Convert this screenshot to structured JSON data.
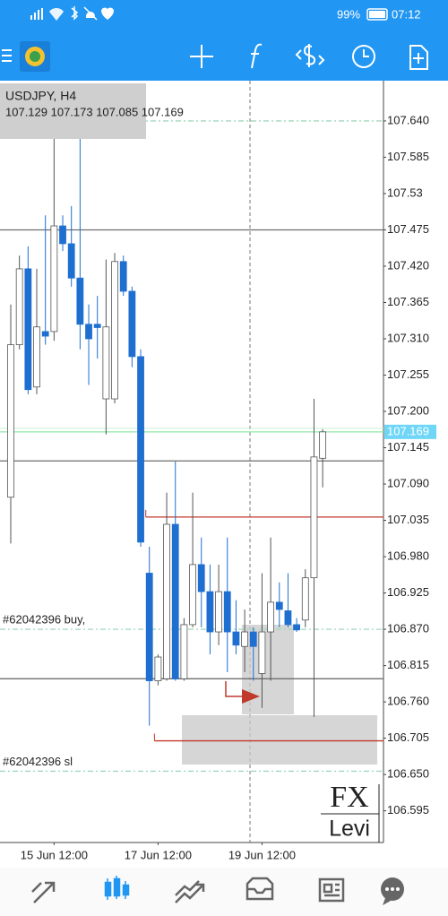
{
  "status_bar": {
    "battery": "99%",
    "time": "07:12"
  },
  "chart_data": {
    "type": "candlestick",
    "symbol": "USDJPY, H4",
    "ohlc_text": "107.129 107.173 107.085 107.169",
    "categories": [
      null,
      null,
      null,
      null,
      null,
      "15 Jun 12:00",
      null,
      null,
      null,
      null,
      null,
      null,
      null,
      null,
      null,
      null,
      null,
      "17 Jun 12:00",
      null,
      null,
      null,
      null,
      null,
      null,
      null,
      null,
      null,
      null,
      null,
      "19 Jun 12:00",
      null,
      null,
      null,
      null,
      null,
      null,
      null
    ],
    "open": [
      107.07,
      107.301,
      107.416,
      107.237,
      107.321,
      107.321,
      107.481,
      107.454,
      107.402,
      107.332,
      107.332,
      107.219,
      107.219,
      107.427,
      107.382,
      107.283,
      106.955,
      106.792,
      106.795,
      107.029,
      106.795,
      106.877,
      106.968,
      106.927,
      106.866,
      106.927,
      106.866,
      106.844,
      106.866,
      106.803,
      106.866,
      106.911,
      106.898,
      106.877,
      106.884,
      106.948,
      107.129
    ],
    "high": [
      107.362,
      107.436,
      107.45,
      107.416,
      107.497,
      107.633,
      107.497,
      107.511,
      107.62,
      107.362,
      107.375,
      107.43,
      107.44,
      107.436,
      107.389,
      107.294,
      106.995,
      106.832,
      107.077,
      107.124,
      106.887,
      107.077,
      107.009,
      106.968,
      106.968,
      107.009,
      106.914,
      106.9,
      106.873,
      106.955,
      107.009,
      106.941,
      106.955,
      106.887,
      106.961,
      107.219,
      107.173
    ],
    "low": [
      107.0,
      107.294,
      107.226,
      107.226,
      107.301,
      107.307,
      107.443,
      107.389,
      107.294,
      107.24,
      107.28,
      107.165,
      107.212,
      107.375,
      107.267,
      106.995,
      106.724,
      106.785,
      106.792,
      106.792,
      106.792,
      106.873,
      106.873,
      106.832,
      106.846,
      106.805,
      106.832,
      106.805,
      106.792,
      106.751,
      106.792,
      106.873,
      106.873,
      106.866,
      106.873,
      106.737,
      107.085
    ],
    "close": [
      107.301,
      107.416,
      107.233,
      107.328,
      107.314,
      107.481,
      107.454,
      107.402,
      107.332,
      107.31,
      107.327,
      107.328,
      107.427,
      107.382,
      107.283,
      107.002,
      106.792,
      106.828,
      107.029,
      106.795,
      106.877,
      106.968,
      106.927,
      106.866,
      106.927,
      106.866,
      106.846,
      106.866,
      106.844,
      106.866,
      106.911,
      106.9,
      106.877,
      106.869,
      106.948,
      107.131,
      107.169
    ],
    "up_color": "#ffffff",
    "down_color": "#1f6fd1",
    "ylim": [
      106.547,
      107.701
    ],
    "yticks": [
      {
        "value": 107.64,
        "label": "107.640"
      },
      107.585,
      107.53,
      107.475,
      {
        "value": 107.42,
        "label": "107.420"
      },
      107.365,
      {
        "value": 107.31,
        "label": "107.310"
      },
      107.255,
      {
        "value": 107.2,
        "label": "107.200"
      },
      107.145,
      {
        "value": 107.09,
        "label": "107.090"
      },
      107.035,
      {
        "value": 106.98,
        "label": "106.980"
      },
      106.925,
      {
        "value": 106.87,
        "label": "106.870"
      },
      106.815,
      {
        "value": 106.76,
        "label": "106.760"
      },
      106.705,
      {
        "value": 106.65,
        "label": "106.650"
      },
      106.595
    ],
    "current_price": 107.169,
    "current_color": "#6fd6f7",
    "levels": [
      {
        "value": 107.64,
        "color": "#9fd8bd",
        "dash": true
      },
      {
        "value": 107.475,
        "color": "#6e6e6e"
      },
      {
        "value": 107.125,
        "color": "#6e6e6e"
      },
      {
        "value": 107.04,
        "color": "#c0392b",
        "from_index": 16
      },
      {
        "value": 106.87,
        "color": "#9fd8bd",
        "dash": true,
        "label": "#62042396 buy,"
      },
      {
        "value": 106.795,
        "color": "#6e6e6e"
      },
      {
        "value": 106.701,
        "color": "#c0392b",
        "from_index": 17
      },
      {
        "value": 106.655,
        "color": "#9fd8bd",
        "dash": true,
        "label": "#62042396 sl"
      }
    ]
  },
  "watermark": {
    "line1": "FX",
    "line2": "Levi"
  }
}
